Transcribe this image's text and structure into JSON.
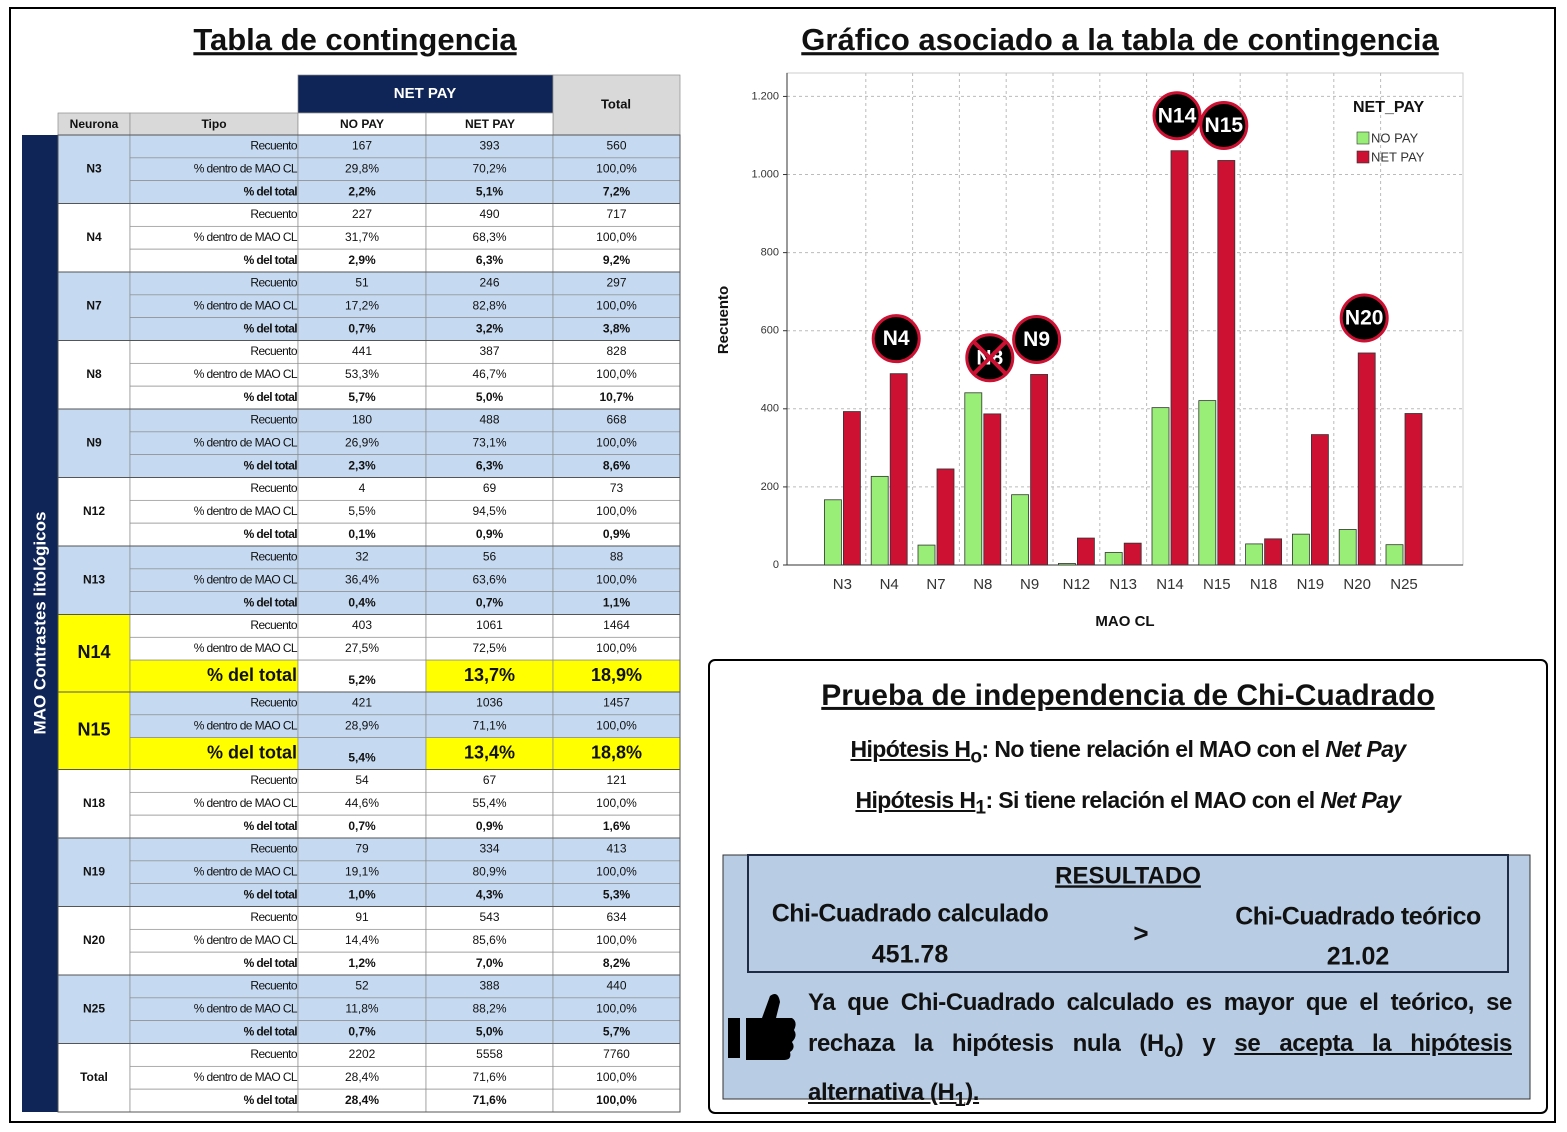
{
  "table": {
    "title": "Tabla de contingencia",
    "side_label": "MAO Contrastes litológicos",
    "header": {
      "group": "NET PAY",
      "total": "Total",
      "neurona": "Neurona",
      "tipo": "Tipo",
      "columns": [
        "NO PAY",
        "NET PAY"
      ]
    },
    "row_types": [
      "Recuento",
      "% dentro de MAO CL",
      "% del total"
    ],
    "groups": [
      {
        "name": "N3",
        "rows": [
          [
            "167",
            "393",
            "560"
          ],
          [
            "29,8%",
            "70,2%",
            "100,0%"
          ],
          [
            "2,2%",
            "5,1%",
            "7,2%"
          ]
        ]
      },
      {
        "name": "N4",
        "rows": [
          [
            "227",
            "490",
            "717"
          ],
          [
            "31,7%",
            "68,3%",
            "100,0%"
          ],
          [
            "2,9%",
            "6,3%",
            "9,2%"
          ]
        ]
      },
      {
        "name": "N7",
        "rows": [
          [
            "51",
            "246",
            "297"
          ],
          [
            "17,2%",
            "82,8%",
            "100,0%"
          ],
          [
            "0,7%",
            "3,2%",
            "3,8%"
          ]
        ]
      },
      {
        "name": "N8",
        "rows": [
          [
            "441",
            "387",
            "828"
          ],
          [
            "53,3%",
            "46,7%",
            "100,0%"
          ],
          [
            "5,7%",
            "5,0%",
            "10,7%"
          ]
        ]
      },
      {
        "name": "N9",
        "rows": [
          [
            "180",
            "488",
            "668"
          ],
          [
            "26,9%",
            "73,1%",
            "100,0%"
          ],
          [
            "2,3%",
            "6,3%",
            "8,6%"
          ]
        ]
      },
      {
        "name": "N12",
        "rows": [
          [
            "4",
            "69",
            "73"
          ],
          [
            "5,5%",
            "94,5%",
            "100,0%"
          ],
          [
            "0,1%",
            "0,9%",
            "0,9%"
          ]
        ]
      },
      {
        "name": "N13",
        "rows": [
          [
            "32",
            "56",
            "88"
          ],
          [
            "36,4%",
            "63,6%",
            "100,0%"
          ],
          [
            "0,4%",
            "0,7%",
            "1,1%"
          ]
        ]
      },
      {
        "name": "N14",
        "highlighted": true,
        "rows": [
          [
            "403",
            "1061",
            "1464"
          ],
          [
            "27,5%",
            "72,5%",
            "100,0%"
          ],
          [
            "5,2%",
            "13,7%",
            "18,9%"
          ]
        ]
      },
      {
        "name": "N15",
        "highlighted": true,
        "rows": [
          [
            "421",
            "1036",
            "1457"
          ],
          [
            "28,9%",
            "71,1%",
            "100,0%"
          ],
          [
            "5,4%",
            "13,4%",
            "18,8%"
          ]
        ]
      },
      {
        "name": "N18",
        "rows": [
          [
            "54",
            "67",
            "121"
          ],
          [
            "44,6%",
            "55,4%",
            "100,0%"
          ],
          [
            "0,7%",
            "0,9%",
            "1,6%"
          ]
        ]
      },
      {
        "name": "N19",
        "rows": [
          [
            "79",
            "334",
            "413"
          ],
          [
            "19,1%",
            "80,9%",
            "100,0%"
          ],
          [
            "1,0%",
            "4,3%",
            "5,3%"
          ]
        ]
      },
      {
        "name": "N20",
        "rows": [
          [
            "91",
            "543",
            "634"
          ],
          [
            "14,4%",
            "85,6%",
            "100,0%"
          ],
          [
            "1,2%",
            "7,0%",
            "8,2%"
          ]
        ]
      },
      {
        "name": "N25",
        "rows": [
          [
            "52",
            "388",
            "440"
          ],
          [
            "11,8%",
            "88,2%",
            "100,0%"
          ],
          [
            "0,7%",
            "5,0%",
            "5,7%"
          ]
        ]
      },
      {
        "name": "Total",
        "rows": [
          [
            "2202",
            "5558",
            "7760"
          ],
          [
            "28,4%",
            "71,6%",
            "100,0%"
          ],
          [
            "28,4%",
            "71,6%",
            "100,0%"
          ]
        ]
      }
    ]
  },
  "chart_data": {
    "type": "bar",
    "title": "Gráfico asociado a la tabla de contingencia",
    "x_label": "MAO CL",
    "y_label": "Recuento",
    "legend_title": "NET_PAY",
    "categories": [
      "N3",
      "N4",
      "N7",
      "N8",
      "N9",
      "N12",
      "N13",
      "N14",
      "N15",
      "N18",
      "N19",
      "N20",
      "N25"
    ],
    "series": [
      {
        "name": "NO PAY",
        "color": "#99ee77",
        "values": [
          167,
          227,
          51,
          441,
          180,
          4,
          32,
          403,
          421,
          54,
          79,
          91,
          52
        ]
      },
      {
        "name": "NET PAY",
        "color": "#cc1133",
        "values": [
          393,
          490,
          246,
          387,
          488,
          69,
          56,
          1061,
          1036,
          67,
          334,
          543,
          388
        ]
      }
    ],
    "ylim": [
      0,
      1260
    ],
    "yticks": [
      0,
      200,
      400,
      600,
      800,
      {
        "value": 1000,
        "label": "1.000"
      },
      {
        "value": 1200,
        "label": "1.200"
      }
    ],
    "grid": true,
    "legend": "upper right",
    "annotations": [
      {
        "text": "N4"
      },
      {
        "text": "N8",
        "crossed": true
      },
      {
        "text": "N9"
      },
      {
        "text": "N14"
      },
      {
        "text": "N15"
      },
      {
        "text": "N20"
      }
    ]
  },
  "test": {
    "title": "Prueba de independencia de Chi-Cuadrado",
    "hypotheses": [
      {
        "label": "Hipótesis H",
        "sub": "o",
        "text": ": No tiene relación el MAO con el ",
        "emphasis": "Net Pay"
      },
      {
        "label": "Hipótesis H",
        "sub": "1",
        "text": ": Si tiene relación el MAO con el ",
        "emphasis": "Net Pay"
      }
    ],
    "result": {
      "title": "RESULTADO",
      "left_label": "Chi-Cuadrado calculado",
      "left_value": "451.78",
      "operator": ">",
      "right_label": "Chi-Cuadrado teórico",
      "right_value": "21.02"
    },
    "conclusion": {
      "text": "Ya que Chi-Cuadrado calculado es mayor que el teórico, se rechaza la hipótesis nula (H",
      "sub1": "o",
      "mid": ") y ",
      "accept": "se acepta la hipótesis alternativa (H",
      "sub2": "1",
      "end": ")."
    }
  }
}
